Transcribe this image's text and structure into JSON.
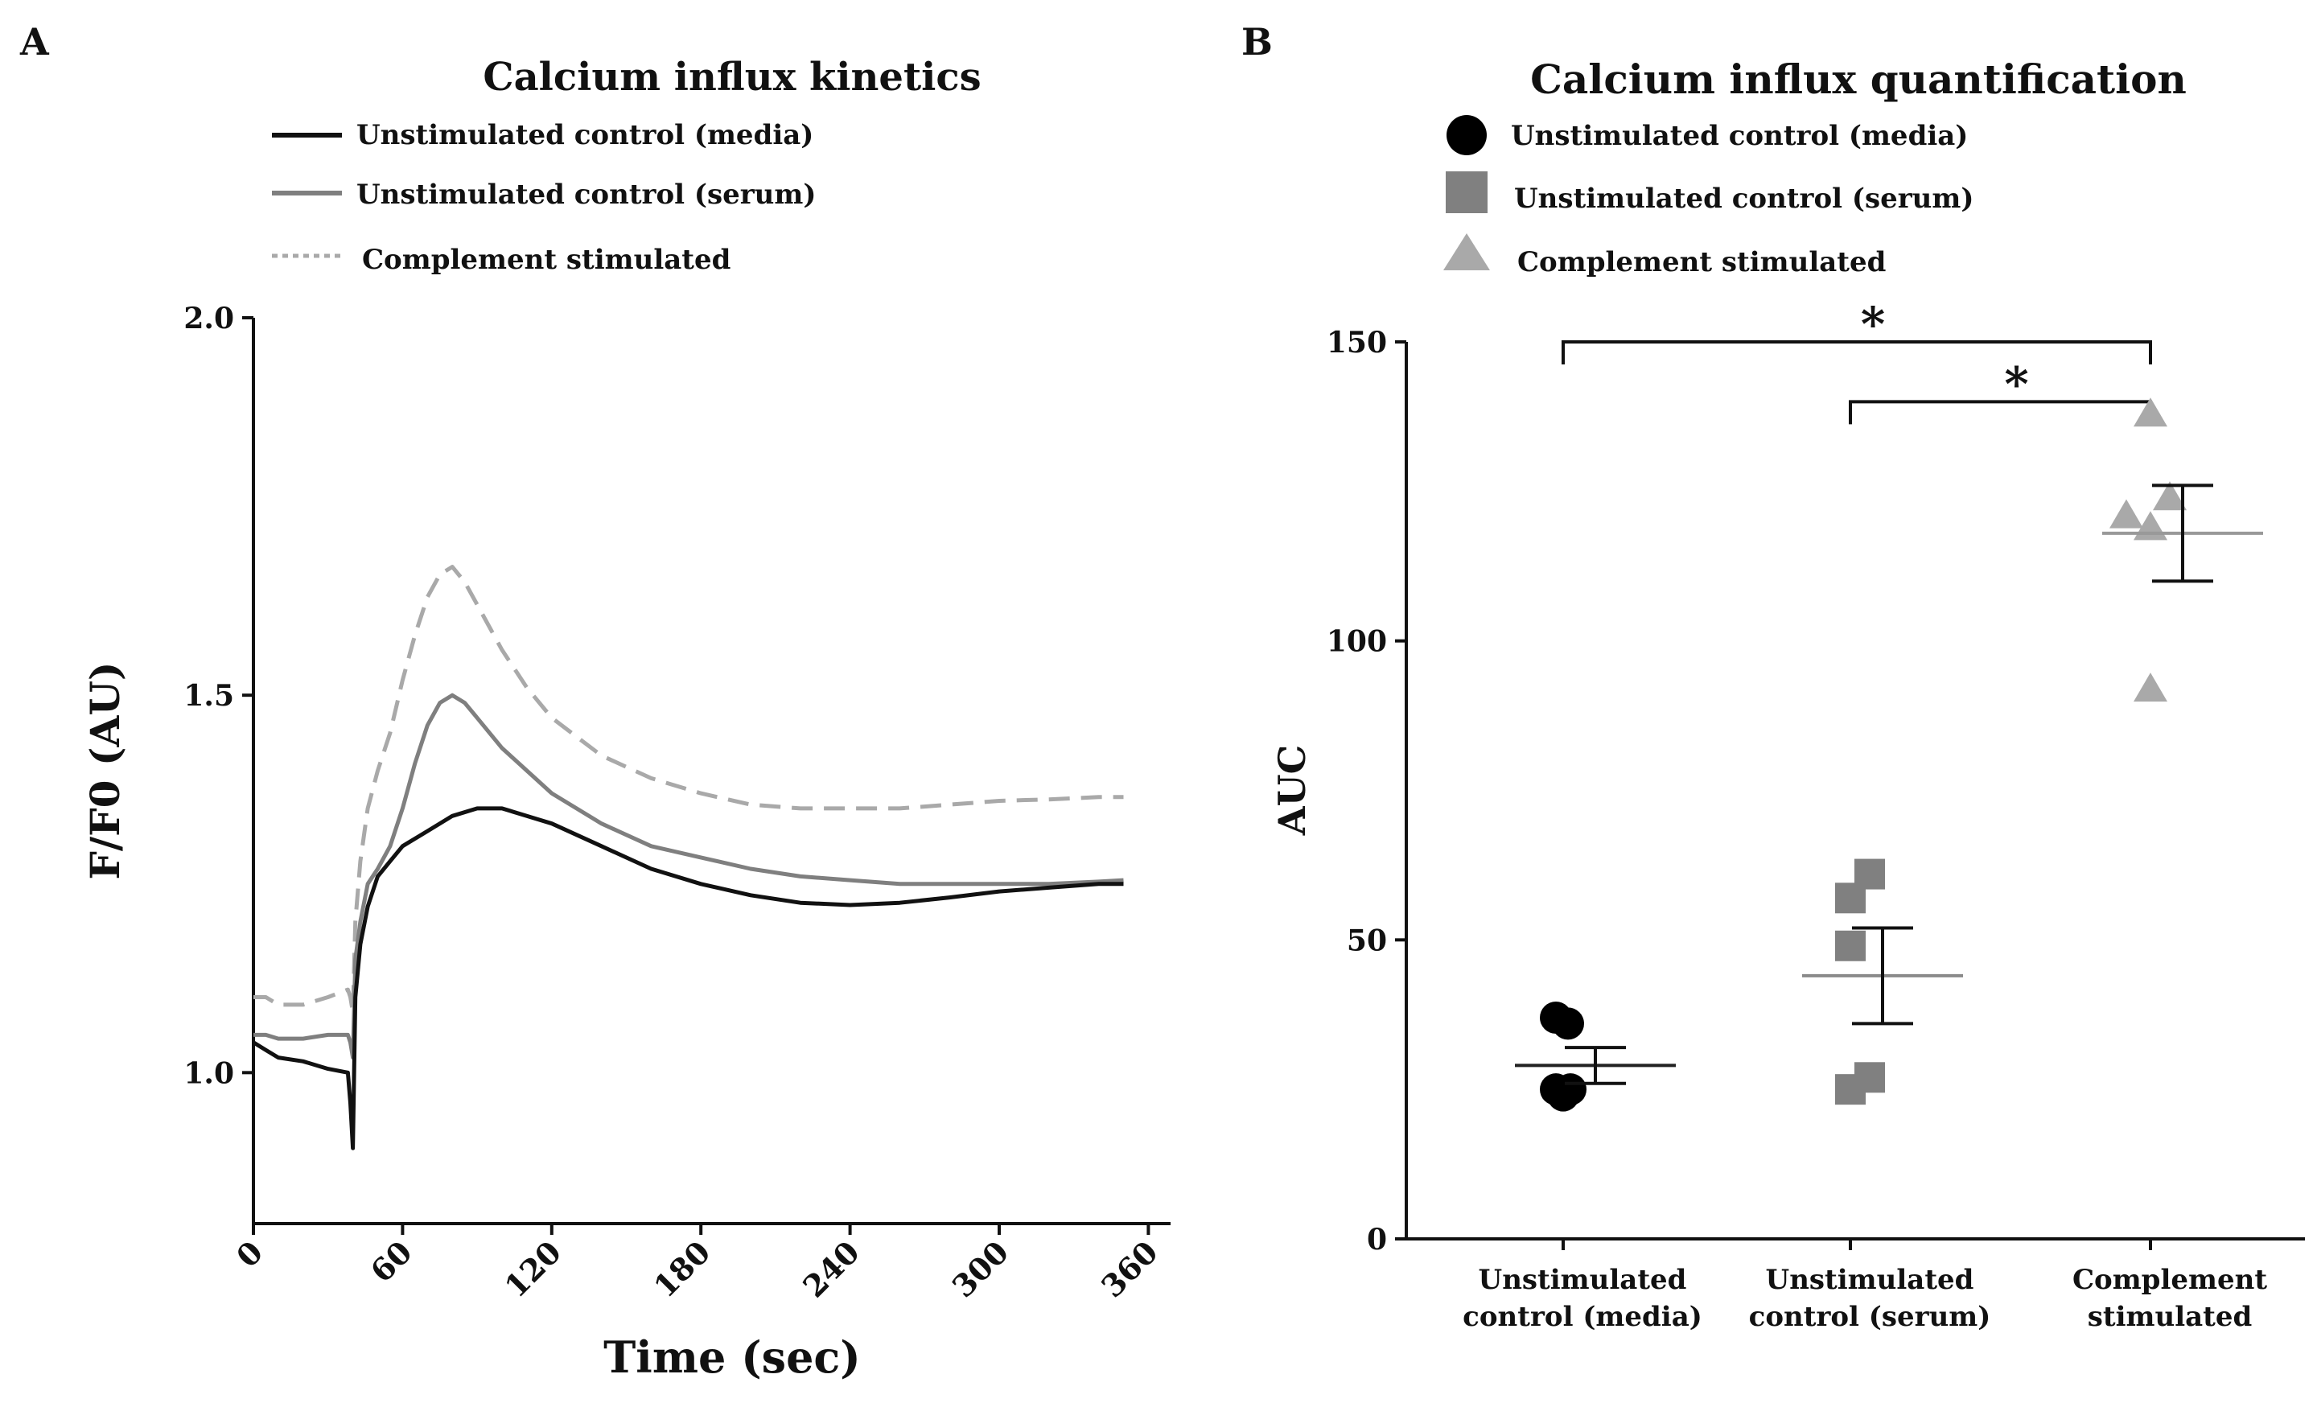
{
  "panels": {
    "a_label": "A",
    "b_label": "B"
  },
  "chart_data": [
    {
      "type": "line",
      "title": "Calcium influx kinetics",
      "xlabel": "Time (sec)",
      "ylabel": "F/F0 (AU)",
      "xlim": [
        0,
        365
      ],
      "ylim": [
        0.8,
        2.0
      ],
      "xticks": [
        "0",
        "60",
        "120",
        "180",
        "240",
        "300",
        "360"
      ],
      "yticks": [
        "1.0",
        "1.5",
        "2.0"
      ],
      "legend_position": "top-left",
      "series": [
        {
          "name": "Unstimulated control (media)",
          "color": "#111111",
          "style": "solid",
          "x": [
            0,
            5,
            10,
            20,
            30,
            38,
            39,
            40,
            41,
            43,
            46,
            50,
            55,
            60,
            70,
            80,
            90,
            100,
            120,
            140,
            160,
            180,
            200,
            220,
            240,
            260,
            280,
            300,
            320,
            340,
            350
          ],
          "y": [
            1.04,
            1.03,
            1.02,
            1.015,
            1.005,
            1.0,
            0.96,
            0.9,
            1.1,
            1.17,
            1.22,
            1.26,
            1.28,
            1.3,
            1.32,
            1.34,
            1.35,
            1.35,
            1.33,
            1.3,
            1.27,
            1.25,
            1.235,
            1.225,
            1.222,
            1.225,
            1.232,
            1.24,
            1.245,
            1.25,
            1.25
          ]
        },
        {
          "name": "Unstimulated control (serum)",
          "color": "#7f7f7f",
          "style": "solid",
          "x": [
            0,
            5,
            10,
            20,
            30,
            38,
            39,
            40,
            41,
            43,
            46,
            50,
            55,
            60,
            65,
            70,
            75,
            80,
            85,
            90,
            100,
            110,
            120,
            140,
            160,
            180,
            200,
            220,
            240,
            260,
            280,
            300,
            320,
            340,
            350
          ],
          "y": [
            1.05,
            1.05,
            1.045,
            1.045,
            1.05,
            1.05,
            1.04,
            1.02,
            1.15,
            1.2,
            1.25,
            1.27,
            1.3,
            1.35,
            1.41,
            1.46,
            1.49,
            1.5,
            1.49,
            1.47,
            1.43,
            1.4,
            1.37,
            1.33,
            1.3,
            1.285,
            1.27,
            1.26,
            1.255,
            1.25,
            1.25,
            1.25,
            1.25,
            1.253,
            1.255
          ]
        },
        {
          "name": "Complement stimulated",
          "color": "#a9a9a9",
          "style": "dashed",
          "x": [
            0,
            5,
            10,
            20,
            30,
            38,
            39,
            40,
            41,
            43,
            46,
            50,
            55,
            60,
            65,
            70,
            75,
            80,
            85,
            90,
            100,
            110,
            120,
            140,
            160,
            180,
            200,
            220,
            240,
            260,
            280,
            300,
            320,
            340,
            350
          ],
          "y": [
            1.1,
            1.1,
            1.09,
            1.09,
            1.1,
            1.11,
            1.1,
            1.08,
            1.2,
            1.28,
            1.35,
            1.4,
            1.45,
            1.52,
            1.58,
            1.63,
            1.66,
            1.67,
            1.65,
            1.62,
            1.56,
            1.51,
            1.47,
            1.42,
            1.39,
            1.37,
            1.355,
            1.35,
            1.35,
            1.35,
            1.355,
            1.36,
            1.362,
            1.365,
            1.365
          ]
        }
      ]
    },
    {
      "type": "scatter",
      "title": "Calcium influx quantification",
      "ylabel": "AUC",
      "ylim": [
        0,
        150
      ],
      "yticks": [
        "0",
        "50",
        "100",
        "150"
      ],
      "legend_position": "top-left",
      "categories": [
        {
          "line1": "Unstimulated",
          "line2": "control (media)"
        },
        {
          "line1": "Unstimulated",
          "line2": "control (serum)"
        },
        {
          "line1": "Complement",
          "line2": "stimulated"
        }
      ],
      "series": [
        {
          "name": "Unstimulated control (media)",
          "marker": "circle",
          "color": "#000000",
          "points": [
            [
              -0.03,
              37
            ],
            [
              0.02,
              36
            ],
            [
              -0.03,
              25
            ],
            [
              0.0,
              24
            ],
            [
              0.03,
              25
            ]
          ],
          "mean": 29,
          "sem_low": 26,
          "sem_high": 32
        },
        {
          "name": "Unstimulated control (serum)",
          "marker": "square",
          "color": "#808080",
          "points": [
            [
              0.0,
              57
            ],
            [
              0.08,
              61
            ],
            [
              0.0,
              49
            ],
            [
              0.08,
              27
            ],
            [
              0.0,
              25
            ]
          ],
          "mean": 44,
          "sem_low": 36,
          "sem_high": 52
        },
        {
          "name": "Complement stimulated",
          "marker": "triangle",
          "color": "#a9a9a9",
          "points": [
            [
              0.0,
              138
            ],
            [
              -0.1,
              121
            ],
            [
              0.0,
              119
            ],
            [
              0.08,
              124
            ],
            [
              0.0,
              92
            ]
          ],
          "mean": 118,
          "sem_low": 110,
          "sem_high": 126
        }
      ],
      "significance": [
        {
          "from": 0,
          "to": 2,
          "level": 150,
          "label": "*"
        },
        {
          "from": 1,
          "to": 2,
          "level": 140,
          "label": "*"
        }
      ]
    }
  ]
}
